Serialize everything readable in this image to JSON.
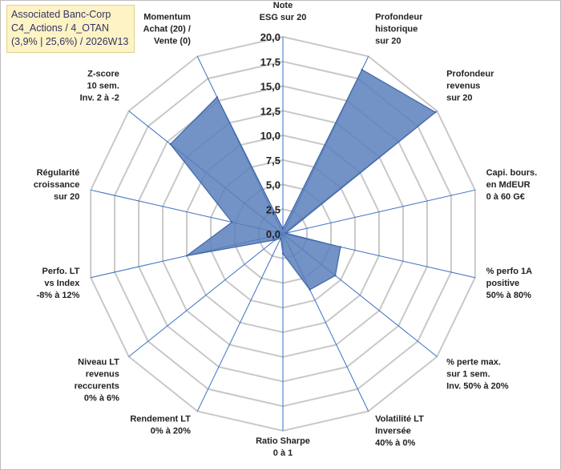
{
  "info": {
    "line1": "Associated Banc-Corp",
    "line2": "C4_Actions / 4_OTAN",
    "line3": "(3,9% | 25,6%) / 2026W13"
  },
  "chart_data": {
    "type": "radar",
    "rmax": 20,
    "rings": 8,
    "ticks": [
      "0,0",
      "2,5",
      "5,0",
      "7,5",
      "10,0",
      "12,5",
      "15,0",
      "17,5",
      "20,0"
    ],
    "axes": [
      {
        "lines": [
          "Note",
          "ESG sur 20"
        ]
      },
      {
        "lines": [
          "Profondeur",
          "historique",
          "sur 20"
        ]
      },
      {
        "lines": [
          "Profondeur",
          "revenus",
          "sur 20"
        ]
      },
      {
        "lines": [
          "Capi. bours.",
          "en MdEUR",
          "0 à 60 G€"
        ]
      },
      {
        "lines": [
          "% perfo 1A",
          "positive",
          "50% à 80%"
        ]
      },
      {
        "lines": [
          "% perte max.",
          "sur 1 sem.",
          "Inv. 50% à 20%"
        ]
      },
      {
        "lines": [
          "Volatilité LT",
          "Inversée",
          "40% à 0%"
        ]
      },
      {
        "lines": [
          "Ratio Sharpe",
          "0 à 1"
        ]
      },
      {
        "lines": [
          "Rendement LT",
          "0% à 20%"
        ]
      },
      {
        "lines": [
          "Niveau LT",
          "revenus",
          "reccurents",
          "0% à 6%"
        ]
      },
      {
        "lines": [
          "Perfo. LT",
          "vs Index",
          "-8% à 12%"
        ]
      },
      {
        "lines": [
          "Régularité",
          "croissance",
          "sur 20"
        ]
      },
      {
        "lines": [
          "Z-score",
          "10 sem.",
          "Inv. 2 à -2"
        ]
      },
      {
        "lines": [
          "Momentum",
          "Achat (20) /",
          "Vente (0)"
        ]
      }
    ],
    "values": [
      0.5,
      18.5,
      19.8,
      0.3,
      6.0,
      6.8,
      6.3,
      2.0,
      0.5,
      1.0,
      10.0,
      5.3,
      14.6,
      15.4
    ],
    "fill": "#5b7fbb",
    "stroke": "#3f66a8",
    "grid": "#c8c8c8",
    "axis_color": "#3a6fc4"
  }
}
